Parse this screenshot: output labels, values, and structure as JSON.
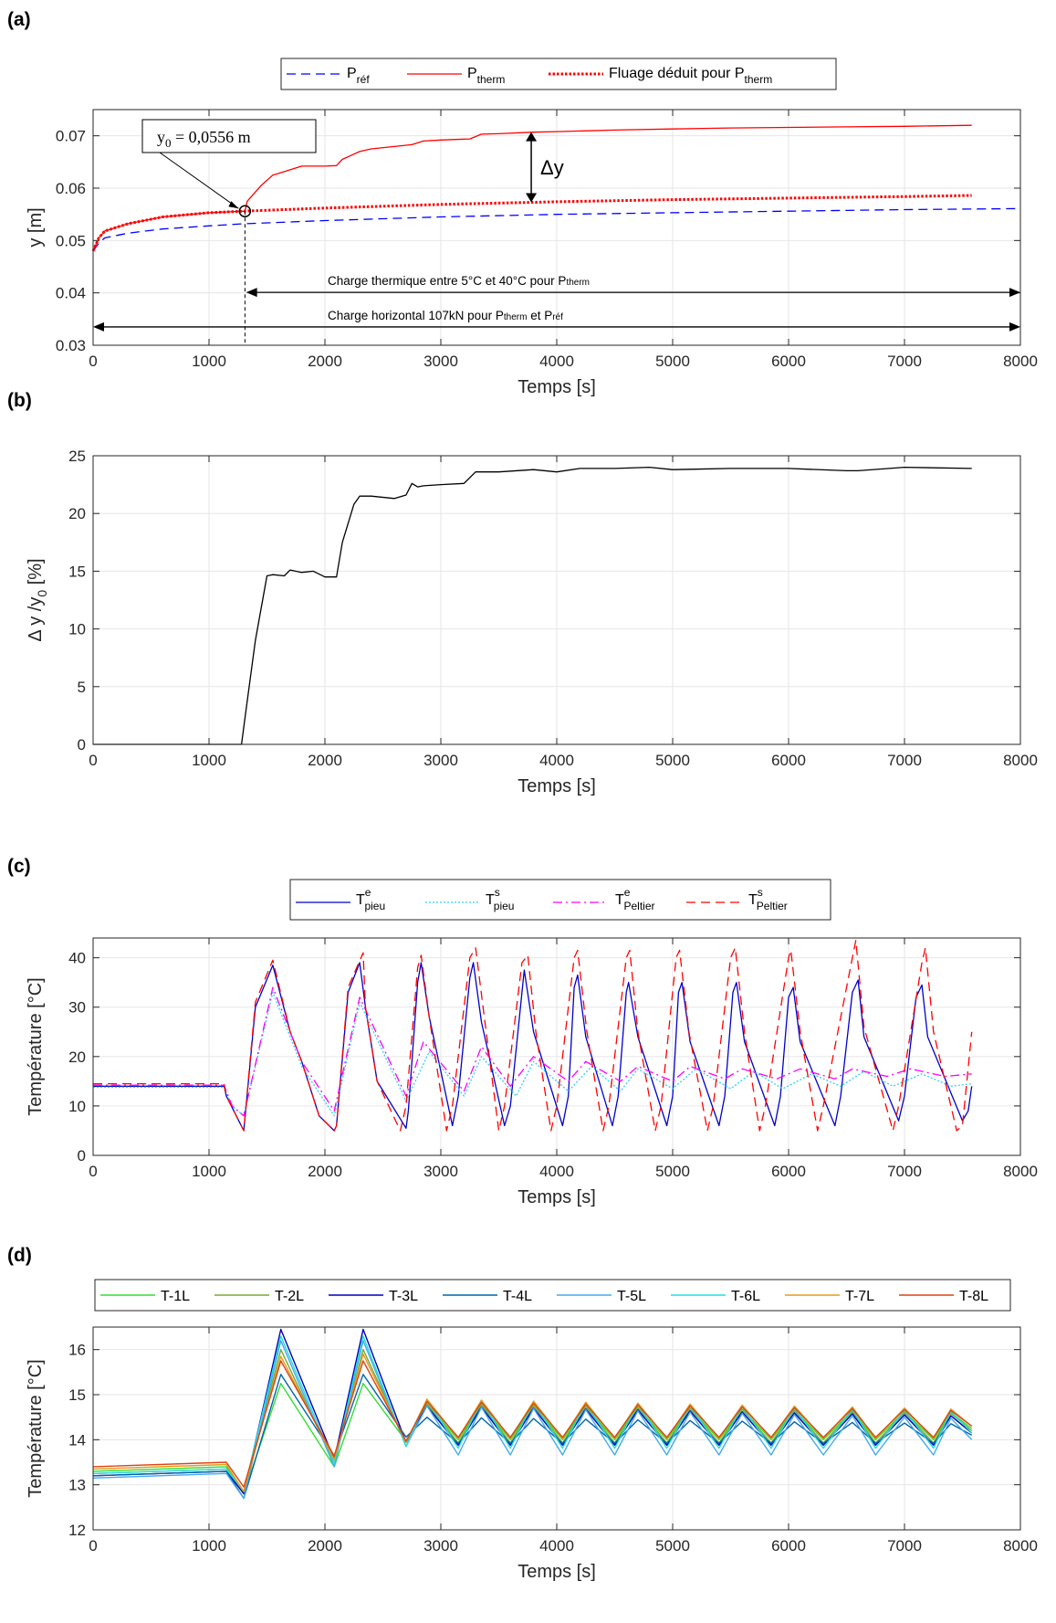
{
  "figure": {
    "panel_labels": [
      "(a)",
      "(b)",
      "(c)",
      "(d)"
    ]
  },
  "chart_data": [
    {
      "id": "a",
      "type": "line",
      "xlabel": "Temps [s]",
      "ylabel": "y [m]",
      "xlim": [
        0,
        8000
      ],
      "ylim": [
        0.03,
        0.075
      ],
      "xticks": [
        "0",
        "1000",
        "2000",
        "3000",
        "4000",
        "5000",
        "6000",
        "7000",
        "8000"
      ],
      "yticks": [
        "0.03",
        "0.04",
        "0.05",
        "0.06",
        "0.07"
      ],
      "grid": true,
      "legend": "top-center",
      "series": [
        {
          "name": "P_réf",
          "base": "P",
          "sub": "réf",
          "color": "#0000ff",
          "style": "dashed",
          "x": [
            0,
            50,
            100,
            300,
            600,
            1000,
            1300,
            2000,
            3000,
            4000,
            5000,
            6000,
            7000,
            8000
          ],
          "y": [
            0.048,
            0.0495,
            0.0505,
            0.0514,
            0.0522,
            0.0528,
            0.0532,
            0.0538,
            0.0545,
            0.055,
            0.0553,
            0.0556,
            0.0559,
            0.0561
          ]
        },
        {
          "name": "P_therm",
          "base": "P",
          "sub": "therm",
          "color": "#ff0000",
          "style": "solid",
          "x": [
            0,
            50,
            100,
            300,
            600,
            1000,
            1310,
            1330,
            1450,
            1550,
            1600,
            1700,
            1800,
            2000,
            2100,
            2150,
            2300,
            2400,
            2750,
            2850,
            3000,
            3250,
            3350,
            3500,
            3800,
            4000,
            4500,
            5000,
            5500,
            6000,
            6500,
            7000,
            7580
          ],
          "y": [
            0.048,
            0.0505,
            0.0518,
            0.0532,
            0.0545,
            0.0553,
            0.0556,
            0.0575,
            0.0605,
            0.0625,
            0.0628,
            0.0635,
            0.0642,
            0.0642,
            0.0643,
            0.0655,
            0.067,
            0.0675,
            0.0683,
            0.069,
            0.0692,
            0.0694,
            0.0703,
            0.0704,
            0.0707,
            0.0708,
            0.0711,
            0.0713,
            0.0715,
            0.0716,
            0.0717,
            0.0718,
            0.072
          ]
        },
        {
          "name": "Fluage déduit pour P_therm",
          "base": "Fluage déduit pour P",
          "sub": "therm",
          "color": "#ff0000",
          "style": "dotted",
          "x": [
            0,
            50,
            100,
            300,
            600,
            1000,
            1300,
            2000,
            3000,
            4000,
            5000,
            6000,
            7000,
            7580
          ],
          "y": [
            0.048,
            0.0505,
            0.0518,
            0.0532,
            0.0545,
            0.0553,
            0.0556,
            0.0562,
            0.0569,
            0.0574,
            0.0578,
            0.0581,
            0.0584,
            0.0586
          ]
        }
      ],
      "annotations": {
        "y0_text": "y0 = 0,0556 m",
        "y0_base": "y",
        "y0_sub": "0",
        "y0_rest": " = 0,0556 m",
        "delta_label": "Δy",
        "arrow1": {
          "x_start": 1320,
          "x_end": 8000,
          "y": 0.0401
        },
        "arrow2": {
          "x_start": 0,
          "x_end": 8000,
          "y": 0.0335
        },
        "thermal_text_main": "Charge thermique entre 5°C et 40°C pour P",
        "thermal_text_sub": "therm",
        "horiz_text_1": "Charge horizontal 107kN pour P",
        "horiz_text_1_sub": "therm",
        "horiz_text_2": " et P",
        "horiz_text_2_sub": "réf",
        "y0_point": {
          "x": 1310,
          "y": 0.0556
        },
        "delta_x": 3780
      }
    },
    {
      "id": "b",
      "type": "line",
      "xlabel": "Temps [s]",
      "ylabel": "Δ y /y0  [%]",
      "ylabel_parts": {
        "main": "Δ y /y",
        "sub": "0",
        "tail": "  [%]"
      },
      "xlim": [
        0,
        8000
      ],
      "ylim": [
        0,
        25
      ],
      "xticks": [
        "0",
        "1000",
        "2000",
        "3000",
        "4000",
        "5000",
        "6000",
        "7000",
        "8000"
      ],
      "yticks": [
        "0",
        "5",
        "10",
        "15",
        "20",
        "25"
      ],
      "grid": true,
      "series": [
        {
          "color": "#000000",
          "style": "solid",
          "x": [
            0,
            1280,
            1320,
            1400,
            1500,
            1550,
            1650,
            1700,
            1800,
            1900,
            2000,
            2100,
            2150,
            2250,
            2300,
            2400,
            2600,
            2700,
            2750,
            2800,
            2850,
            3000,
            3200,
            3300,
            3500,
            3800,
            4000,
            4200,
            4500,
            4800,
            5000,
            5500,
            6000,
            6500,
            6600,
            7000,
            7580
          ],
          "y": [
            0,
            0,
            3,
            9,
            14.6,
            14.7,
            14.6,
            15.1,
            14.9,
            15.0,
            14.5,
            14.5,
            17.5,
            20.8,
            21.5,
            21.5,
            21.3,
            21.6,
            22.6,
            22.3,
            22.4,
            22.5,
            22.6,
            23.6,
            23.6,
            23.8,
            23.6,
            23.9,
            23.9,
            24.0,
            23.8,
            23.9,
            23.9,
            23.7,
            23.7,
            24.0,
            23.9
          ]
        }
      ]
    },
    {
      "id": "c",
      "type": "line",
      "xlabel": "Temps [s]",
      "ylabel": "Température [°C]",
      "xlim": [
        0,
        8000
      ],
      "ylim": [
        0,
        44
      ],
      "xticks": [
        "0",
        "1000",
        "2000",
        "3000",
        "4000",
        "5000",
        "6000",
        "7000",
        "8000"
      ],
      "yticks": [
        "0",
        "10",
        "20",
        "30",
        "40"
      ],
      "grid": true,
      "legend": "top-center",
      "series": [
        {
          "name": "T^e_pieu",
          "base": "T",
          "sup": "e",
          "sub": "pieu",
          "color": "#0000cc",
          "style": "solid",
          "x": [
            0,
            1130,
            1150,
            1300,
            1400,
            1550,
            1700,
            1800,
            1950,
            2080,
            2100,
            2200,
            2300,
            2350,
            2450,
            2700,
            2720,
            2800,
            2830,
            2900,
            3100,
            3150,
            3250,
            3280,
            3350,
            3550,
            3600,
            3700,
            3720,
            3800,
            4050,
            4100,
            4150,
            4180,
            4250,
            4480,
            4530,
            4600,
            4620,
            4700,
            4950,
            5000,
            5050,
            5080,
            5150,
            5400,
            5450,
            5520,
            5550,
            5620,
            5880,
            5930,
            6000,
            6040,
            6100,
            6400,
            6450,
            6550,
            6600,
            6650,
            6950,
            7000,
            7100,
            7150,
            7200,
            7500,
            7550,
            7580
          ],
          "y": [
            14,
            14,
            12,
            5,
            30,
            38.5,
            25,
            19,
            8,
            5,
            6,
            33,
            39,
            30,
            15,
            5.5,
            9,
            35,
            39,
            28,
            6,
            12,
            36,
            39,
            27,
            6,
            10,
            33,
            37.5,
            25,
            6,
            12,
            34,
            36.5,
            24,
            6,
            12,
            33,
            35,
            24,
            6,
            12,
            33,
            35,
            23,
            6,
            12,
            33,
            35,
            23,
            6,
            12,
            32,
            34,
            23,
            6,
            12,
            33,
            35.5,
            24,
            7,
            12,
            32,
            34.5,
            24,
            7,
            9,
            14
          ]
        },
        {
          "name": "T^s_pieu",
          "base": "T",
          "sup": "s",
          "sub": "pieu",
          "color": "#33ccff",
          "style": "dotted",
          "x": [
            0,
            1130,
            1200,
            1300,
            1550,
            1800,
            2080,
            2300,
            2700,
            2900,
            3200,
            3350,
            3650,
            3800,
            4100,
            4300,
            4550,
            4700,
            5000,
            5200,
            5500,
            5700,
            5950,
            6200,
            6450,
            6650,
            6900,
            7150,
            7400,
            7580
          ],
          "y": [
            13.8,
            13.8,
            10,
            8,
            33,
            18,
            8,
            31,
            11,
            21,
            12,
            20,
            12,
            19,
            13,
            18,
            13,
            17.5,
            13.5,
            17.5,
            13.5,
            17,
            13.5,
            16.5,
            14,
            17,
            14,
            16.5,
            14,
            14.5
          ]
        },
        {
          "name": "T^e_Peltier",
          "base": "T",
          "sup": "e",
          "sub": "Peltier",
          "color": "#ff00ff",
          "style": "dashdot",
          "x": [
            0,
            1130,
            1200,
            1300,
            1550,
            1800,
            2080,
            2300,
            2700,
            2850,
            3200,
            3350,
            3600,
            3800,
            4100,
            4250,
            4550,
            4700,
            5000,
            5150,
            5450,
            5600,
            5900,
            6100,
            6400,
            6550,
            6850,
            7050,
            7350,
            7580
          ],
          "y": [
            14.2,
            14.2,
            10,
            8,
            34,
            19,
            9,
            32,
            12,
            23,
            13,
            22,
            14,
            20,
            15,
            19,
            15,
            18,
            15,
            18,
            15.5,
            17.5,
            15.5,
            17.5,
            15.5,
            17.5,
            16,
            17.5,
            16,
            16.5
          ]
        },
        {
          "name": "T^s_Peltier",
          "base": "T",
          "sup": "s",
          "sub": "Peltier",
          "color": "#ff0000",
          "style": "dashed",
          "x": [
            0,
            1130,
            1150,
            1300,
            1400,
            1550,
            1700,
            1800,
            1950,
            2080,
            2100,
            2200,
            2330,
            2350,
            2450,
            2650,
            2700,
            2800,
            2830,
            2900,
            3050,
            3100,
            3250,
            3300,
            3380,
            3500,
            3550,
            3700,
            3750,
            3820,
            3950,
            4000,
            4150,
            4180,
            4260,
            4400,
            4450,
            4600,
            4630,
            4700,
            4850,
            4900,
            5030,
            5060,
            5140,
            5300,
            5350,
            5500,
            5540,
            5620,
            5750,
            5800,
            6000,
            6020,
            6100,
            6250,
            6300,
            6550,
            6580,
            6650,
            6900,
            6950,
            7150,
            7180,
            7250,
            7450,
            7500,
            7580
          ],
          "y": [
            14.5,
            14.5,
            12,
            5,
            31,
            39.5,
            25,
            19,
            8,
            5,
            6,
            34,
            41,
            30,
            15,
            5,
            10,
            38,
            40.5,
            28,
            5,
            10,
            40,
            42,
            27,
            5,
            10,
            39,
            40.5,
            25,
            5,
            10,
            40,
            41.5,
            25,
            5,
            10,
            40,
            41.5,
            25,
            5,
            10,
            40,
            41.5,
            25,
            5,
            10,
            40,
            42,
            25,
            5,
            10,
            40,
            41.5,
            25,
            5,
            10,
            40,
            43.5,
            26,
            5,
            10,
            39,
            42,
            25,
            5,
            6,
            25
          ]
        }
      ]
    },
    {
      "id": "d",
      "type": "line",
      "xlabel": "Temps [s]",
      "ylabel": "Température [°C]",
      "xlim": [
        0,
        8000
      ],
      "ylim": [
        12,
        16.5
      ],
      "xticks": [
        "0",
        "1000",
        "2000",
        "3000",
        "4000",
        "5000",
        "6000",
        "7000",
        "8000"
      ],
      "yticks": [
        "12",
        "13",
        "14",
        "15",
        "16"
      ],
      "grid": true,
      "legend": "top",
      "series": [
        {
          "name": "T-1L",
          "color": "#33dd33",
          "style": "solid",
          "amp": 0.55,
          "base": 13.3,
          "peak1": 15.25,
          "peak2": 15.25,
          "tail": 14.25
        },
        {
          "name": "T-2L",
          "color": "#77aa33",
          "style": "solid",
          "amp": 0.6,
          "base": 13.25,
          "peak1": 16.0,
          "peak2": 16.0,
          "tail": 14.2
        },
        {
          "name": "T-3L",
          "color": "#0000bb",
          "style": "solid",
          "amp": 0.6,
          "base": 13.2,
          "peak1": 16.45,
          "peak2": 16.45,
          "tail": 14.15
        },
        {
          "name": "T-4L",
          "color": "#0066aa",
          "style": "solid",
          "amp": 0.4,
          "base": 13.2,
          "peak1": 15.45,
          "peak2": 15.45,
          "tail": 14.1
        },
        {
          "name": "T-5L",
          "color": "#44aaee",
          "style": "solid",
          "amp": 0.75,
          "base": 13.15,
          "peak1": 16.2,
          "peak2": 16.2,
          "tail": 14.0
        },
        {
          "name": "T-6L",
          "color": "#22dddd",
          "style": "solid",
          "amp": 0.75,
          "base": 13.25,
          "peak1": 16.3,
          "peak2": 16.3,
          "tail": 14.15
        },
        {
          "name": "T-7L",
          "color": "#e69a1a",
          "style": "solid",
          "amp": 0.6,
          "base": 13.35,
          "peak1": 15.85,
          "peak2": 15.9,
          "tail": 14.3
        },
        {
          "name": "T-8L",
          "color": "#dd4411",
          "style": "solid",
          "amp": 0.55,
          "base": 13.4,
          "peak1": 15.75,
          "peak2": 15.75,
          "tail": 14.3
        }
      ]
    }
  ]
}
